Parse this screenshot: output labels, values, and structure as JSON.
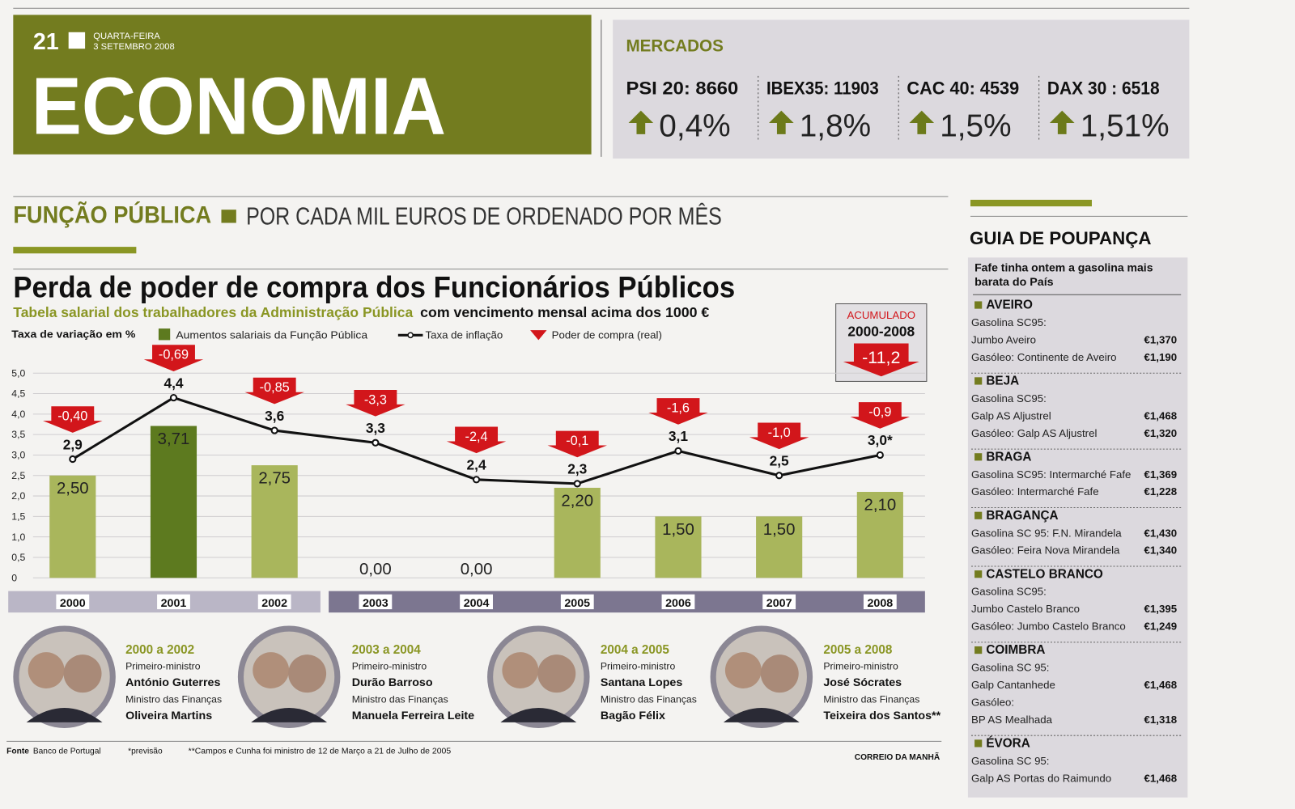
{
  "header": {
    "page": "21",
    "day": "QUARTA-FEIRA",
    "date": "3 SETEMBRO 2008",
    "title": "ECONOMIA"
  },
  "markets": {
    "title": "MERCADOS",
    "items": [
      {
        "name": "PSI 20: 8660",
        "change": "0,4%"
      },
      {
        "name": "IBEX35: 11903",
        "change": "1,8%"
      },
      {
        "name": "CAC 40: 4539",
        "change": "1,5%"
      },
      {
        "name": "DAX 30 : 6518",
        "change": "1,51%"
      }
    ]
  },
  "section": {
    "kicker": "FUNÇÃO PÚBLICA",
    "subtitle": "POR CADA MIL EUROS DE ORDENADO POR MÊS"
  },
  "chart_data": {
    "type": "bar",
    "title": "Perda de poder de compra dos Funcionários Públicos",
    "subtitle": [
      "Tabela salarial dos trabalhadores da Administração Pública",
      "com vencimento mensal acima dos 1000 €"
    ],
    "y_label": "Taxa de variação em %",
    "categories": [
      "2000",
      "2001",
      "2002",
      "2003",
      "2004",
      "2005",
      "2006",
      "2007",
      "2008"
    ],
    "series": [
      {
        "name": "Aumentos salariais da Função Pública",
        "type": "bar",
        "colors": [
          "#a9b65c",
          "#5d7a1f",
          "#a9b65c",
          "#a9b65c",
          "#a9b65c",
          "#a9b65c",
          "#a9b65c",
          "#a9b65c",
          "#a9b65c"
        ],
        "values": [
          2.5,
          3.71,
          2.75,
          0,
          0,
          2.2,
          1.5,
          1.5,
          2.1
        ],
        "value_labels": [
          "2,50",
          "3,71",
          "2,75",
          "0,00",
          "0,00",
          "2,20",
          "1,50",
          "1,50",
          "2,10"
        ]
      },
      {
        "name": "Taxa de inflação",
        "type": "line",
        "color": "#111111",
        "values": [
          2.9,
          4.4,
          3.6,
          3.3,
          2.4,
          2.3,
          3.1,
          2.5,
          3.0
        ],
        "value_labels": [
          "2,9",
          "4,4",
          "3,6",
          "3,3",
          "2,4",
          "2,3",
          "3,1",
          "2,5",
          "3,0*"
        ]
      },
      {
        "name": "Poder de compra (real)",
        "type": "arrow",
        "color": "#d2161b",
        "values": [
          -0.4,
          -0.69,
          -0.85,
          -3.3,
          -2.4,
          -0.1,
          -1.6,
          -1.0,
          -0.9
        ],
        "value_labels": [
          "-0,40",
          "-0,69",
          "-0,85",
          "-3,3",
          "-2,4",
          "-0,1",
          "-1,6",
          "-1,0",
          "-0,9"
        ]
      }
    ],
    "ylim": [
      0,
      5.0
    ],
    "yticks": [
      0,
      {
        "value": 0.5,
        "label": "0,5"
      },
      {
        "value": 1.0,
        "label": "1,0"
      },
      {
        "value": 1.5,
        "label": "1,5"
      },
      {
        "value": 2.0,
        "label": "2,0"
      },
      {
        "value": 2.5,
        "label": "2,5"
      },
      {
        "value": 3.0,
        "label": "3,0"
      },
      {
        "value": 3.5,
        "label": "3,5"
      },
      {
        "value": 4.0,
        "label": "4,0"
      },
      {
        "value": 4.5,
        "label": "4,5"
      },
      {
        "value": 5.0,
        "label": "5,0"
      }
    ],
    "grid": true,
    "accumulated": {
      "label": "ACUMULADO",
      "period": "2000-2008",
      "value": -11.2,
      "value_label": "-11,2"
    }
  },
  "ministers": [
    {
      "period": "2000 a 2002",
      "role1": "Primeiro-ministro",
      "name1": "António Guterres",
      "role2": "Ministro das Finanças",
      "name2": "Oliveira Martins"
    },
    {
      "period": "2003 a 2004",
      "role1": "Primeiro-ministro",
      "name1": "Durão Barroso",
      "role2": "Ministro das Finanças",
      "name2": "Manuela Ferreira Leite"
    },
    {
      "period": "2004 a 2005",
      "role1": "Primeiro-ministro",
      "name1": "Santana Lopes",
      "role2": "Ministro das Finanças",
      "name2": "Bagão Félix"
    },
    {
      "period": "2005 a 2008",
      "role1": "Primeiro-ministro",
      "name1": "José Sócrates",
      "role2": "Ministro das Finanças",
      "name2": "Teixeira dos Santos**"
    }
  ],
  "footer": {
    "source_label": "Fonte",
    "source": "Banco de Portugal",
    "note1": "*previsão",
    "note2": "**Campos e Cunha foi ministro de 12 de Março a 21 de Julho de 2005",
    "credit": "CORREIO DA MANHÃ"
  },
  "guide": {
    "title": "GUIA DE POUPANÇA",
    "intro": [
      "Fafe tinha ontem a gasolina mais",
      "barata do País"
    ],
    "regions": [
      {
        "name": "AVEIRO",
        "rows": [
          {
            "label": "Gasolina SC95:"
          },
          {
            "label": "Jumbo Aveiro",
            "price": "€1,370"
          },
          {
            "label": "Gasóleo: Continente de Aveiro",
            "price": "€1,190"
          }
        ]
      },
      {
        "name": "BEJA",
        "rows": [
          {
            "label": "Gasolina SC95:"
          },
          {
            "label": "Galp AS Aljustrel",
            "price": "€1,468"
          },
          {
            "label": "Gasóleo: Galp AS Aljustrel",
            "price": "€1,320"
          }
        ]
      },
      {
        "name": "BRAGA",
        "rows": [
          {
            "label": "Gasolina SC95: Intermarché Fafe",
            "price": "€1,369"
          },
          {
            "label": "Gasóleo: Intermarché Fafe",
            "price": "€1,228"
          }
        ]
      },
      {
        "name": "BRAGANÇA",
        "rows": [
          {
            "label": "Gasolina SC 95: F.N. Mirandela",
            "price": "€1,430"
          },
          {
            "label": "Gasóleo: Feira Nova Mirandela",
            "price": "€1,340"
          }
        ]
      },
      {
        "name": "CASTELO BRANCO",
        "rows": [
          {
            "label": "Gasolina SC95:"
          },
          {
            "label": "Jumbo Castelo Branco",
            "price": "€1,395"
          },
          {
            "label": "Gasóleo: Jumbo Castelo Branco",
            "price": "€1,249"
          }
        ]
      },
      {
        "name": "COIMBRA",
        "rows": [
          {
            "label": "Gasolina SC 95:"
          },
          {
            "label": "Galp Cantanhede",
            "price": "€1,468"
          },
          {
            "label": "Gasóleo:"
          },
          {
            "label": "BP AS Mealhada",
            "price": "€1,318"
          }
        ]
      },
      {
        "name": "ÉVORA",
        "rows": [
          {
            "label": "Gasolina SC 95:"
          },
          {
            "label": "Galp AS Portas do Raimundo",
            "price": "€1,468"
          }
        ]
      }
    ]
  }
}
